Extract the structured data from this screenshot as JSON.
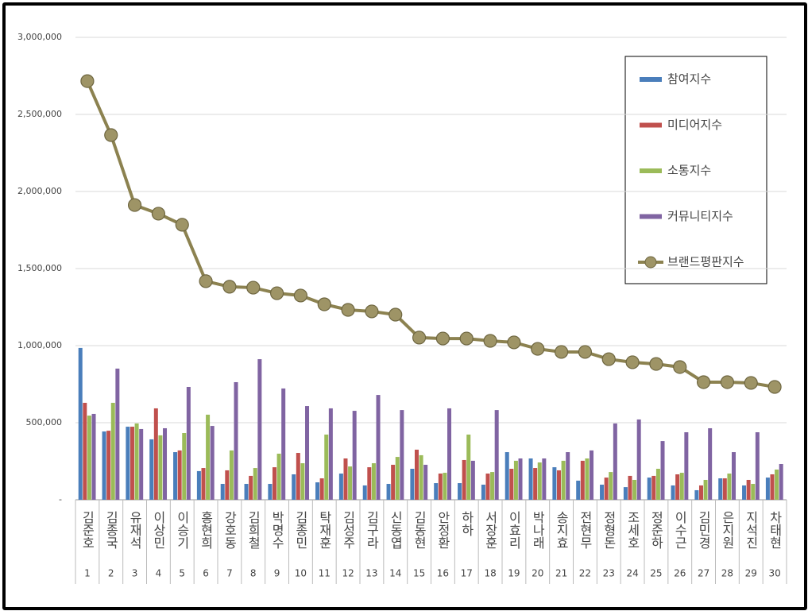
{
  "chart_data": {
    "type": "bar",
    "categories": [
      "김준호",
      "김종국",
      "유재석",
      "이상민",
      "이승기",
      "홍현희",
      "강호동",
      "김희철",
      "박명수",
      "김종민",
      "탁재훈",
      "김성주",
      "김구라",
      "신동엽",
      "김동현",
      "안정환",
      "하하",
      "서장훈",
      "이효리",
      "박나래",
      "송지효",
      "전현무",
      "정형돈",
      "조세호",
      "정준하",
      "이수근",
      "김민경",
      "은지원",
      "지석진",
      "차태현"
    ],
    "ranks": [
      1,
      2,
      3,
      4,
      5,
      6,
      7,
      8,
      9,
      10,
      11,
      12,
      13,
      14,
      15,
      16,
      17,
      18,
      19,
      20,
      21,
      22,
      23,
      24,
      25,
      26,
      27,
      28,
      29,
      30
    ],
    "ylim": [
      0,
      3000000
    ],
    "yticks": [
      {
        "value": 0,
        "label": "-"
      },
      {
        "value": 500000,
        "label": "500,000"
      },
      {
        "value": 1000000,
        "label": "1,000,000"
      },
      {
        "value": 1500000,
        "label": "1,500,000"
      },
      {
        "value": 2000000,
        "label": "2,000,000"
      },
      {
        "value": 2500000,
        "label": "2,500,000"
      },
      {
        "value": 3000000,
        "label": "3,000,000"
      }
    ],
    "grid": true,
    "legend": "top-right",
    "series": [
      {
        "name": "참여지수",
        "color": "#4a7ebb",
        "values": [
          985000,
          443000,
          474000,
          392000,
          309000,
          186000,
          103000,
          103000,
          103000,
          165000,
          113000,
          170000,
          93000,
          103000,
          201000,
          108000,
          108000,
          98000,
          309000,
          268000,
          211000,
          124000,
          98000,
          82000,
          144000,
          93000,
          62000,
          139000,
          93000,
          144000
        ]
      },
      {
        "name": "미디어지수",
        "color": "#c0504d",
        "values": [
          629000,
          448000,
          474000,
          593000,
          320000,
          206000,
          191000,
          155000,
          211000,
          304000,
          139000,
          268000,
          211000,
          227000,
          325000,
          170000,
          258000,
          170000,
          201000,
          206000,
          191000,
          253000,
          144000,
          155000,
          155000,
          165000,
          93000,
          139000,
          129000,
          165000
        ]
      },
      {
        "name": "소통지수",
        "color": "#9bbb59",
        "values": [
          546000,
          629000,
          495000,
          418000,
          433000,
          552000,
          320000,
          206000,
          299000,
          237000,
          423000,
          216000,
          237000,
          278000,
          289000,
          175000,
          423000,
          180000,
          253000,
          242000,
          253000,
          268000,
          180000,
          129000,
          201000,
          175000,
          129000,
          170000,
          103000,
          196000
        ]
      },
      {
        "name": "커뮤니티지수",
        "color": "#8064a2",
        "values": [
          557000,
          851000,
          459000,
          464000,
          732000,
          479000,
          763000,
          912000,
          722000,
          608000,
          593000,
          577000,
          680000,
          582000,
          227000,
          593000,
          253000,
          582000,
          268000,
          268000,
          309000,
          320000,
          495000,
          521000,
          381000,
          438000,
          464000,
          309000,
          438000,
          232000
        ]
      },
      {
        "name": "브랜드평판지수",
        "type": "line",
        "color": "#8c8250",
        "values": [
          2716000,
          2366000,
          1912000,
          1856000,
          1784000,
          1418000,
          1382000,
          1376000,
          1340000,
          1325000,
          1268000,
          1232000,
          1222000,
          1201000,
          1052000,
          1046000,
          1046000,
          1031000,
          1021000,
          979000,
          959000,
          959000,
          912000,
          892000,
          881000,
          861000,
          763000,
          763000,
          758000,
          732000
        ]
      }
    ]
  }
}
